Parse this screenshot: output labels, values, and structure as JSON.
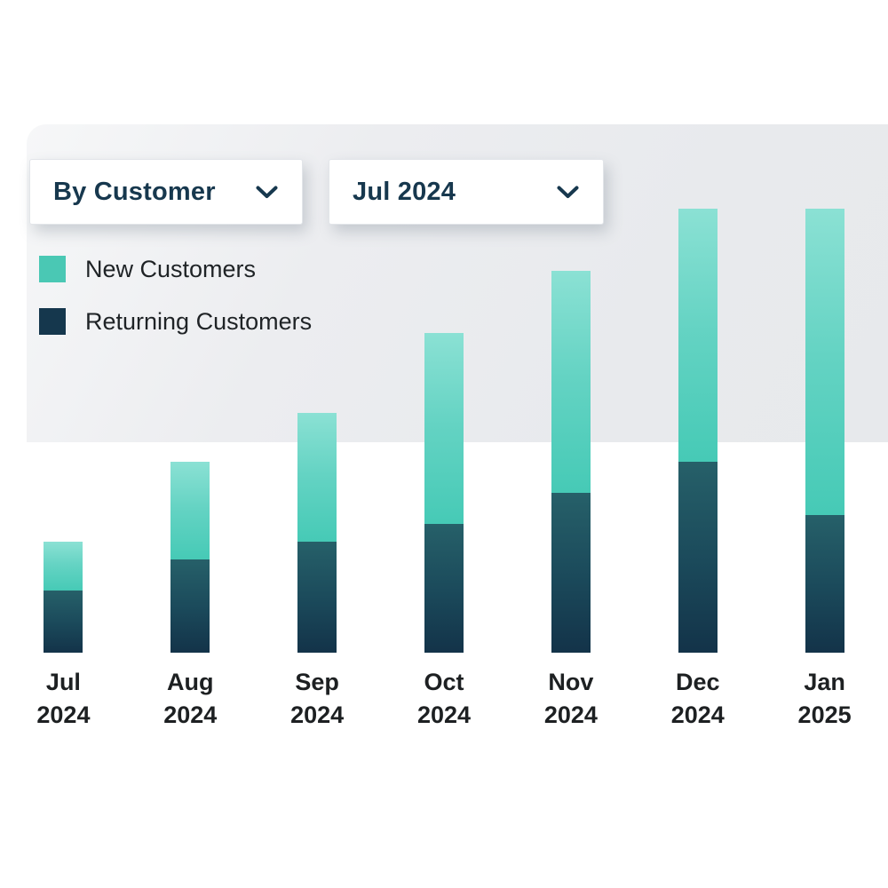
{
  "controls": {
    "group_by_dropdown": {
      "value": "By Customer",
      "icon": "chevron-down-icon"
    },
    "period_dropdown": {
      "value": "Jul 2024",
      "icon": "chevron-down-icon"
    }
  },
  "legend": {
    "items": [
      {
        "label": "New Customers",
        "color": "#4ac8b4"
      },
      {
        "label": "Returning Customers",
        "color": "#15374d"
      }
    ]
  },
  "chart_data": {
    "type": "bar",
    "stacked": true,
    "categories": [
      "Jul 2024",
      "Aug 2024",
      "Sep 2024",
      "Oct 2024",
      "Nov 2024",
      "Dec 2024",
      "Jan 2025"
    ],
    "category_lines": [
      {
        "month": "Jul",
        "year": "2024"
      },
      {
        "month": "Aug",
        "year": "2024"
      },
      {
        "month": "Sep",
        "year": "2024"
      },
      {
        "month": "Oct",
        "year": "2024"
      },
      {
        "month": "Nov",
        "year": "2024"
      },
      {
        "month": "Dec",
        "year": "2024"
      },
      {
        "month": "Jan",
        "year": "2025"
      }
    ],
    "series": [
      {
        "name": "New Customers",
        "values": [
          55,
          110,
          145,
          215,
          250,
          285,
          345
        ],
        "gradient_top": "#8be1d4",
        "gradient_bottom": "#46cab6"
      },
      {
        "name": "Returning Customers",
        "values": [
          70,
          105,
          125,
          145,
          180,
          215,
          155
        ],
        "gradient_top": "#266069",
        "gradient_bottom": "#133349"
      }
    ],
    "stack_totals": [
      125,
      215,
      270,
      360,
      430,
      500,
      500
    ],
    "ylim": [
      0,
      520
    ],
    "axes_visible": false,
    "gridlines": false,
    "legend_position": "top-left",
    "title": "",
    "xlabel": "",
    "ylabel": ""
  },
  "colors": {
    "panel_background": "#e8eaed",
    "page_background": "#ffffff",
    "dropdown_text": "#17384e",
    "label_text": "#1d2022",
    "new_customers_accent": "#4ac8b4",
    "returning_customers_accent": "#15374d"
  }
}
